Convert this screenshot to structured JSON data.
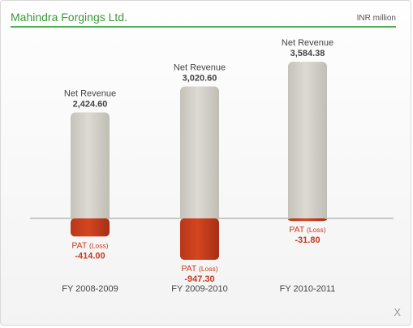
{
  "header": {
    "company": "Mahindra Forgings Ltd.",
    "unit": "INR million"
  },
  "close_label": "X",
  "colors": {
    "revenue_bar": "#d2d0c8",
    "pat_bar": "#c93e1e",
    "title_green": "#3a9a3a",
    "label_red": "#c83a1e"
  },
  "chart_data": {
    "type": "bar",
    "categories": [
      "FY 2008-2009",
      "FY 2009-2010",
      "FY 2010-2011"
    ],
    "series": [
      {
        "name": "Net Revenue",
        "values": [
          2424.6,
          3020.6,
          3584.38
        ],
        "labels": [
          "2,424.60",
          "3,020.60",
          "3,584.38"
        ]
      },
      {
        "name": "PAT (Loss)",
        "values": [
          -414.0,
          -947.3,
          -31.8
        ],
        "labels": [
          "-414.00",
          "-947.30",
          "-31.80"
        ]
      }
    ],
    "revenue_label": "Net Revenue",
    "pat_label": "PAT",
    "pat_suffix": "(Loss)",
    "title": "",
    "xlabel": "",
    "ylabel": ""
  }
}
